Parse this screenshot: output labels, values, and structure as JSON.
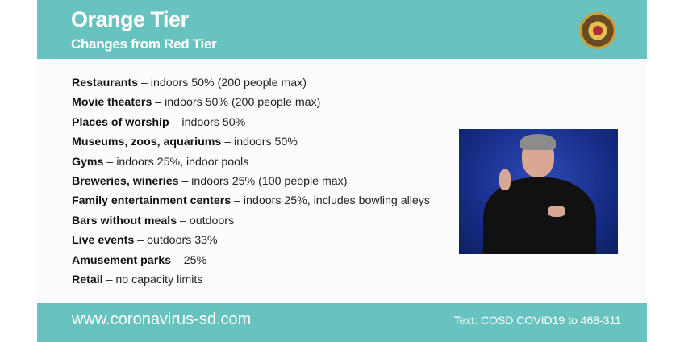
{
  "header": {
    "title": "Orange Tier",
    "subtitle": "Changes from Red Tier"
  },
  "items": [
    {
      "label": "Restaurants",
      "detail": " – indoors 50% (200 people max)"
    },
    {
      "label": "Movie theaters",
      "detail": " – indoors 50% (200 people max)"
    },
    {
      "label": "Places of worship",
      "detail": " – indoors 50%"
    },
    {
      "label": "Museums, zoos, aquariums",
      "detail": " – indoors 50%"
    },
    {
      "label": "Gyms",
      "detail": " – indoors 25%, indoor pools"
    },
    {
      "label": "Breweries, wineries",
      "detail": " – indoors 25% (100 people max)"
    },
    {
      "label": "Family entertainment centers",
      "detail": " – indoors 25%, includes bowling alleys"
    },
    {
      "label": "Bars without meals",
      "detail": " – outdoors"
    },
    {
      "label": "Live events",
      "detail": " – outdoors 33%"
    },
    {
      "label": "Amusement parks",
      "detail": " – 25%"
    },
    {
      "label": "Retail",
      "detail": " – no capacity limits"
    }
  ],
  "footer": {
    "url": "www.coronavirus-sd.com",
    "text": "Text: COSD COVID19 to 468-311"
  },
  "colors": {
    "accent": "#68c3c0"
  }
}
